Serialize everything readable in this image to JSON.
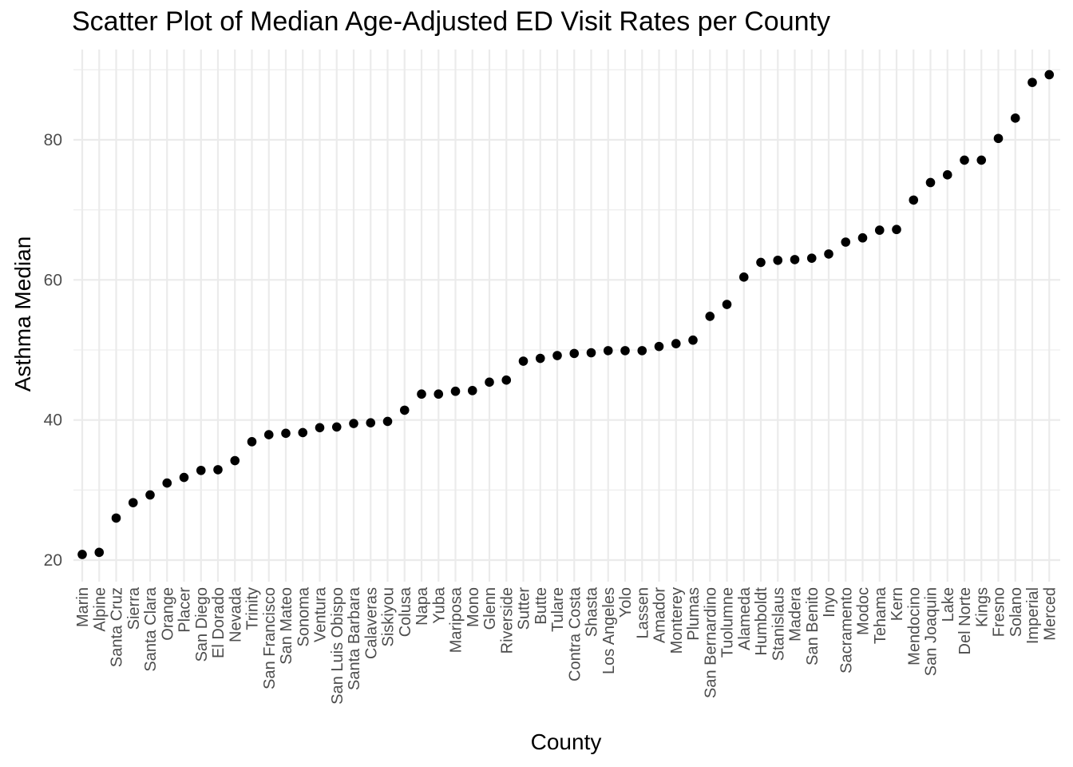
{
  "chart_data": {
    "type": "scatter",
    "title": "Scatter Plot of Median Age-Adjusted ED Visit Rates per County",
    "xlabel": "County",
    "ylabel": "Asthma Median",
    "ylim": [
      18,
      91
    ],
    "yticks": [
      20,
      40,
      60,
      80
    ],
    "grid": true,
    "point_color": "#000000",
    "categories": [
      "Marin",
      "Alpine",
      "Santa Cruz",
      "Sierra",
      "Santa Clara",
      "Orange",
      "Placer",
      "San Diego",
      "El Dorado",
      "Nevada",
      "Trinity",
      "San Francisco",
      "San Mateo",
      "Sonoma",
      "Ventura",
      "San Luis Obispo",
      "Santa Barbara",
      "Calaveras",
      "Siskiyou",
      "Colusa",
      "Napa",
      "Yuba",
      "Mariposa",
      "Mono",
      "Glenn",
      "Riverside",
      "Sutter",
      "Butte",
      "Tulare",
      "Contra Costa",
      "Shasta",
      "Los Angeles",
      "Yolo",
      "Lassen",
      "Amador",
      "Monterey",
      "Plumas",
      "San Bernardino",
      "Tuolumne",
      "Alameda",
      "Humboldt",
      "Stanislaus",
      "Madera",
      "San Benito",
      "Inyo",
      "Sacramento",
      "Modoc",
      "Tehama",
      "Kern",
      "Mendocino",
      "San Joaquin",
      "Lake",
      "Del Norte",
      "Kings",
      "Fresno",
      "Solano",
      "Imperial",
      "Merced"
    ],
    "values": [
      20.8,
      21.1,
      26.0,
      28.2,
      29.3,
      31.0,
      31.8,
      32.8,
      32.9,
      34.2,
      36.9,
      37.9,
      38.1,
      38.2,
      38.9,
      39.0,
      39.5,
      39.6,
      39.8,
      41.4,
      43.7,
      43.7,
      44.1,
      44.2,
      45.4,
      45.7,
      48.4,
      48.8,
      49.2,
      49.5,
      49.6,
      49.9,
      49.9,
      49.9,
      50.5,
      50.9,
      51.4,
      54.8,
      56.5,
      60.4,
      62.5,
      62.8,
      62.9,
      63.1,
      63.7,
      65.4,
      66.0,
      67.1,
      67.2,
      71.4,
      73.9,
      75.0,
      77.1,
      77.1,
      80.2,
      83.1,
      88.2,
      89.3
    ]
  }
}
